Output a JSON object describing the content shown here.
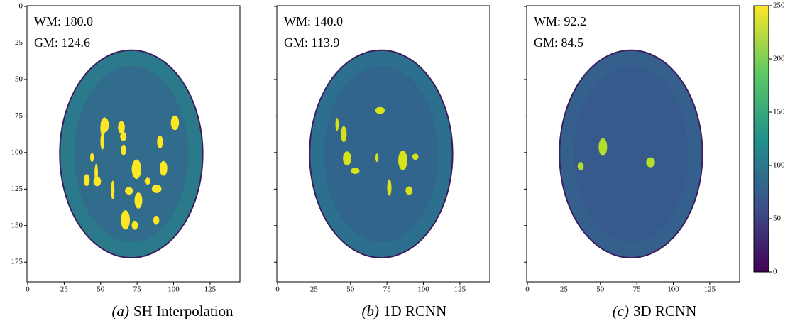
{
  "chart_data": [
    {
      "type": "image",
      "caption_label": "(a)",
      "caption": "SH Interpolation",
      "annotations": [
        "WM: 180.0",
        "GM: 124.6"
      ],
      "xlim": [
        -0.5,
        145.5
      ],
      "ylim": [
        -0.5,
        188.5
      ],
      "xticks": [
        0,
        25,
        50,
        75,
        100,
        125
      ],
      "yticks": [
        0,
        25,
        50,
        75,
        100,
        125,
        150,
        175
      ],
      "show_ytick_labels": true
    },
    {
      "type": "image",
      "caption_label": "(b)",
      "caption": "1D RCNN",
      "annotations": [
        "WM: 140.0",
        "GM: 113.9"
      ],
      "xlim": [
        -0.5,
        145.5
      ],
      "ylim": [
        -0.5,
        188.5
      ],
      "xticks": [
        0,
        25,
        50,
        75,
        100,
        125
      ],
      "yticks": [
        0,
        25,
        50,
        75,
        100,
        125,
        150,
        175
      ],
      "show_ytick_labels": false
    },
    {
      "type": "image",
      "caption_label": "(c)",
      "caption": "3D RCNN",
      "annotations": [
        "WM: 92.2",
        "GM: 84.5"
      ],
      "xlim": [
        -0.5,
        145.5
      ],
      "ylim": [
        -0.5,
        188.5
      ],
      "xticks": [
        0,
        25,
        50,
        75,
        100,
        125
      ],
      "yticks": [
        0,
        25,
        50,
        75,
        100,
        125,
        150,
        175
      ],
      "show_ytick_labels": false
    },
    {
      "type": "colorbar",
      "colormap": [
        "#440154",
        "#3b528b",
        "#21918c",
        "#5ec962",
        "#fde725"
      ],
      "ylim": [
        0,
        250
      ],
      "yticks": [
        0,
        50,
        100,
        150,
        200,
        250
      ]
    }
  ]
}
